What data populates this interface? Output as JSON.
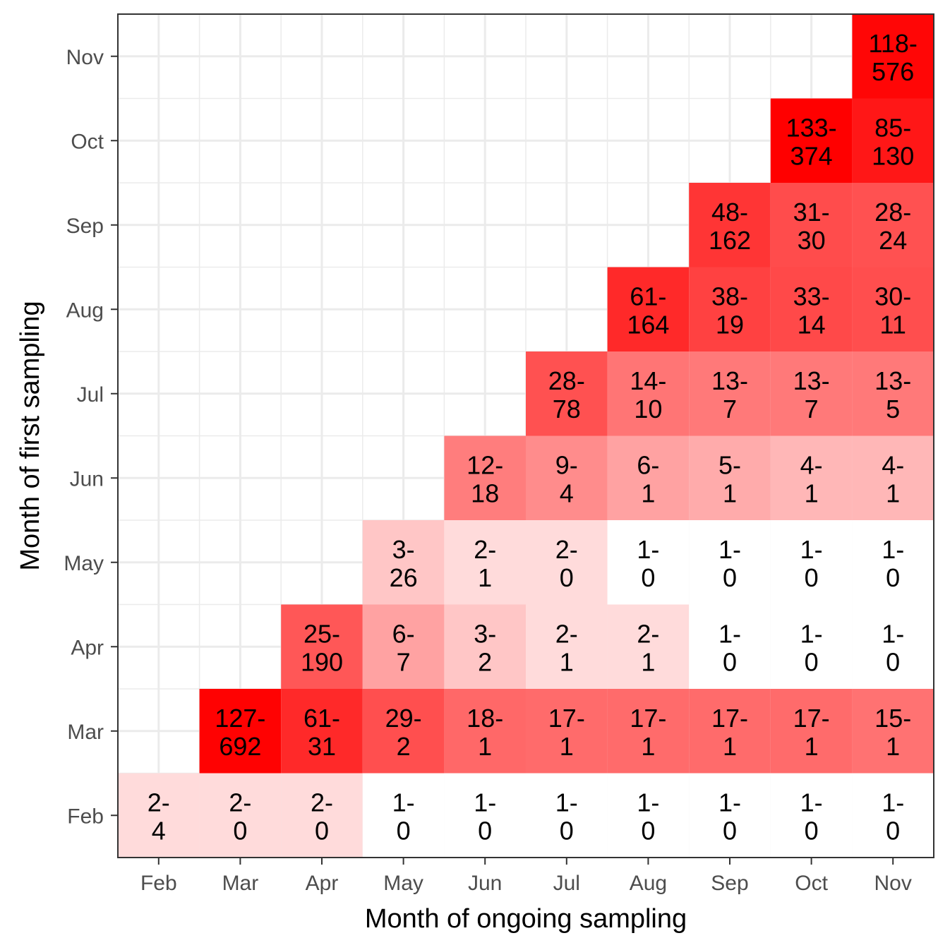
{
  "chart_data": {
    "type": "heatmap",
    "xlabel": "Month of ongoing sampling",
    "ylabel": "Month of first sampling",
    "x_categories": [
      "Feb",
      "Mar",
      "Apr",
      "May",
      "Jun",
      "Jul",
      "Aug",
      "Sep",
      "Oct",
      "Nov"
    ],
    "y_categories": [
      "Feb",
      "Mar",
      "Apr",
      "May",
      "Jun",
      "Jul",
      "Aug",
      "Sep",
      "Oct",
      "Nov"
    ],
    "grid": true,
    "color_low": "#ffffff",
    "color_high": "#ff0000",
    "cells": [
      {
        "first": "Feb",
        "ongoing": "Feb",
        "a": 2,
        "b": 4
      },
      {
        "first": "Feb",
        "ongoing": "Mar",
        "a": 2,
        "b": 0
      },
      {
        "first": "Feb",
        "ongoing": "Apr",
        "a": 2,
        "b": 0
      },
      {
        "first": "Feb",
        "ongoing": "May",
        "a": 1,
        "b": 0
      },
      {
        "first": "Feb",
        "ongoing": "Jun",
        "a": 1,
        "b": 0
      },
      {
        "first": "Feb",
        "ongoing": "Jul",
        "a": 1,
        "b": 0
      },
      {
        "first": "Feb",
        "ongoing": "Aug",
        "a": 1,
        "b": 0
      },
      {
        "first": "Feb",
        "ongoing": "Sep",
        "a": 1,
        "b": 0
      },
      {
        "first": "Feb",
        "ongoing": "Oct",
        "a": 1,
        "b": 0
      },
      {
        "first": "Feb",
        "ongoing": "Nov",
        "a": 1,
        "b": 0
      },
      {
        "first": "Mar",
        "ongoing": "Mar",
        "a": 127,
        "b": 692
      },
      {
        "first": "Mar",
        "ongoing": "Apr",
        "a": 61,
        "b": 31
      },
      {
        "first": "Mar",
        "ongoing": "May",
        "a": 29,
        "b": 2
      },
      {
        "first": "Mar",
        "ongoing": "Jun",
        "a": 18,
        "b": 1
      },
      {
        "first": "Mar",
        "ongoing": "Jul",
        "a": 17,
        "b": 1
      },
      {
        "first": "Mar",
        "ongoing": "Aug",
        "a": 17,
        "b": 1
      },
      {
        "first": "Mar",
        "ongoing": "Sep",
        "a": 17,
        "b": 1
      },
      {
        "first": "Mar",
        "ongoing": "Oct",
        "a": 17,
        "b": 1
      },
      {
        "first": "Mar",
        "ongoing": "Nov",
        "a": 15,
        "b": 1
      },
      {
        "first": "Apr",
        "ongoing": "Apr",
        "a": 25,
        "b": 190
      },
      {
        "first": "Apr",
        "ongoing": "May",
        "a": 6,
        "b": 7
      },
      {
        "first": "Apr",
        "ongoing": "Jun",
        "a": 3,
        "b": 2
      },
      {
        "first": "Apr",
        "ongoing": "Jul",
        "a": 2,
        "b": 1
      },
      {
        "first": "Apr",
        "ongoing": "Aug",
        "a": 2,
        "b": 1
      },
      {
        "first": "Apr",
        "ongoing": "Sep",
        "a": 1,
        "b": 0
      },
      {
        "first": "Apr",
        "ongoing": "Oct",
        "a": 1,
        "b": 0
      },
      {
        "first": "Apr",
        "ongoing": "Nov",
        "a": 1,
        "b": 0
      },
      {
        "first": "May",
        "ongoing": "May",
        "a": 3,
        "b": 26
      },
      {
        "first": "May",
        "ongoing": "Jun",
        "a": 2,
        "b": 1
      },
      {
        "first": "May",
        "ongoing": "Jul",
        "a": 2,
        "b": 0
      },
      {
        "first": "May",
        "ongoing": "Aug",
        "a": 1,
        "b": 0
      },
      {
        "first": "May",
        "ongoing": "Sep",
        "a": 1,
        "b": 0
      },
      {
        "first": "May",
        "ongoing": "Oct",
        "a": 1,
        "b": 0
      },
      {
        "first": "May",
        "ongoing": "Nov",
        "a": 1,
        "b": 0
      },
      {
        "first": "Jun",
        "ongoing": "Jun",
        "a": 12,
        "b": 18
      },
      {
        "first": "Jun",
        "ongoing": "Jul",
        "a": 9,
        "b": 4
      },
      {
        "first": "Jun",
        "ongoing": "Aug",
        "a": 6,
        "b": 1
      },
      {
        "first": "Jun",
        "ongoing": "Sep",
        "a": 5,
        "b": 1
      },
      {
        "first": "Jun",
        "ongoing": "Oct",
        "a": 4,
        "b": 1
      },
      {
        "first": "Jun",
        "ongoing": "Nov",
        "a": 4,
        "b": 1
      },
      {
        "first": "Jul",
        "ongoing": "Jul",
        "a": 28,
        "b": 78
      },
      {
        "first": "Jul",
        "ongoing": "Aug",
        "a": 14,
        "b": 10
      },
      {
        "first": "Jul",
        "ongoing": "Sep",
        "a": 13,
        "b": 7
      },
      {
        "first": "Jul",
        "ongoing": "Oct",
        "a": 13,
        "b": 7
      },
      {
        "first": "Jul",
        "ongoing": "Nov",
        "a": 13,
        "b": 5
      },
      {
        "first": "Aug",
        "ongoing": "Aug",
        "a": 61,
        "b": 164
      },
      {
        "first": "Aug",
        "ongoing": "Sep",
        "a": 38,
        "b": 19
      },
      {
        "first": "Aug",
        "ongoing": "Oct",
        "a": 33,
        "b": 14
      },
      {
        "first": "Aug",
        "ongoing": "Nov",
        "a": 30,
        "b": 11
      },
      {
        "first": "Sep",
        "ongoing": "Sep",
        "a": 48,
        "b": 162
      },
      {
        "first": "Sep",
        "ongoing": "Oct",
        "a": 31,
        "b": 30
      },
      {
        "first": "Sep",
        "ongoing": "Nov",
        "a": 28,
        "b": 24
      },
      {
        "first": "Oct",
        "ongoing": "Oct",
        "a": 133,
        "b": 374
      },
      {
        "first": "Oct",
        "ongoing": "Nov",
        "a": 85,
        "b": 130
      },
      {
        "first": "Nov",
        "ongoing": "Nov",
        "a": 118,
        "b": 576
      }
    ]
  }
}
